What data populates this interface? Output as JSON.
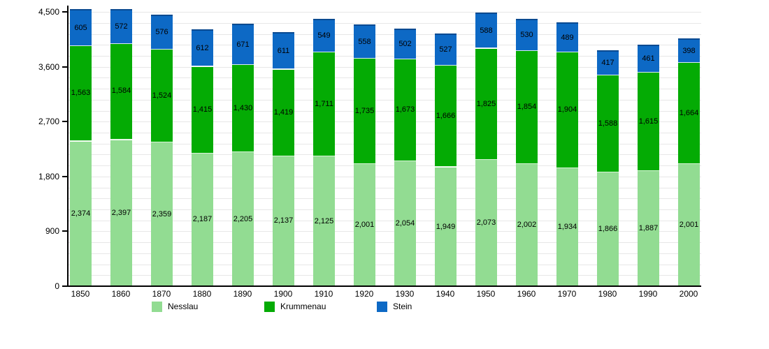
{
  "chart_data": {
    "type": "bar",
    "stacked": true,
    "title": "",
    "xlabel": "",
    "ylabel": "",
    "categories": [
      "1850",
      "1860",
      "1870",
      "1880",
      "1890",
      "1900",
      "1910",
      "1920",
      "1930",
      "1940",
      "1950",
      "1960",
      "1970",
      "1980",
      "1990",
      "2000"
    ],
    "series": [
      {
        "name": "Nesslau",
        "color": "#92DC92",
        "values": [
          2374,
          2397,
          2359,
          2187,
          2205,
          2137,
          2125,
          2001,
          2054,
          1949,
          2073,
          2002,
          1934,
          1866,
          1887,
          2001
        ]
      },
      {
        "name": "Krummenau",
        "color": "#04AB04",
        "values": [
          1563,
          1584,
          1524,
          1415,
          1430,
          1419,
          1711,
          1735,
          1673,
          1666,
          1825,
          1854,
          1904,
          1588,
          1615,
          1664
        ]
      },
      {
        "name": "Stein",
        "color": "#0D69C5",
        "values": [
          605,
          572,
          576,
          612,
          671,
          611,
          549,
          558,
          502,
          527,
          588,
          530,
          489,
          417,
          461,
          398
        ]
      }
    ],
    "ylim": [
      0,
      4500
    ],
    "yticks": [
      0,
      900,
      1800,
      2700,
      3600,
      4500
    ],
    "minor_grid_interval": 180,
    "grid": true,
    "legend_position": "bottom",
    "value_labels": "thousands-comma"
  },
  "colors": {
    "background": "#ffffff",
    "gridline": "#e7e7e7",
    "axis": "#000000",
    "label_text": "#000000"
  }
}
